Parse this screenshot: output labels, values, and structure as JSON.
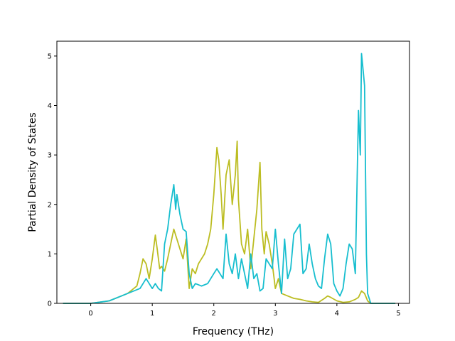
{
  "chart_data": {
    "type": "line",
    "title": "",
    "xlabel": "Frequency (THz)",
    "ylabel": "Partial Density of States",
    "xlim": [
      -0.55,
      5.18
    ],
    "ylim": [
      0,
      5.3
    ],
    "xticks": [
      0,
      1,
      2,
      3,
      4,
      5
    ],
    "yticks": [
      0,
      1,
      2,
      3,
      4,
      5
    ],
    "grid": false,
    "legend": "none",
    "series": [
      {
        "color": "#bcbd22",
        "x": [
          -0.45,
          0.0,
          0.3,
          0.5,
          0.6,
          0.7,
          0.75,
          0.8,
          0.85,
          0.9,
          0.95,
          1.0,
          1.05,
          1.08,
          1.12,
          1.15,
          1.2,
          1.25,
          1.3,
          1.35,
          1.4,
          1.45,
          1.5,
          1.55,
          1.6,
          1.65,
          1.7,
          1.75,
          1.8,
          1.85,
          1.9,
          1.95,
          2.0,
          2.05,
          2.08,
          2.12,
          2.15,
          2.2,
          2.25,
          2.3,
          2.35,
          2.38,
          2.4,
          2.45,
          2.5,
          2.55,
          2.6,
          2.65,
          2.7,
          2.75,
          2.78,
          2.82,
          2.85,
          2.9,
          2.95,
          3.0,
          3.05,
          3.1,
          3.2,
          3.3,
          3.4,
          3.5,
          3.6,
          3.7,
          3.8,
          3.85,
          3.9,
          4.0,
          4.1,
          4.2,
          4.3,
          4.35,
          4.4,
          4.45,
          4.5,
          4.55,
          4.6,
          4.95
        ],
        "values": [
          0,
          0,
          0.05,
          0.15,
          0.2,
          0.3,
          0.35,
          0.6,
          0.9,
          0.8,
          0.5,
          0.9,
          1.38,
          1.1,
          0.7,
          0.75,
          0.65,
          0.9,
          1.2,
          1.5,
          1.3,
          1.1,
          0.9,
          1.3,
          0.3,
          0.7,
          0.6,
          0.8,
          0.9,
          1.0,
          1.2,
          1.5,
          2.2,
          3.15,
          2.9,
          2.2,
          1.5,
          2.6,
          2.9,
          2.0,
          2.6,
          3.28,
          2.1,
          1.2,
          1.0,
          1.5,
          0.7,
          1.3,
          1.9,
          2.85,
          1.5,
          1.0,
          1.45,
          1.2,
          0.8,
          0.3,
          0.5,
          0.2,
          0.15,
          0.1,
          0.08,
          0.05,
          0.03,
          0.02,
          0.1,
          0.15,
          0.12,
          0.05,
          0.02,
          0.03,
          0.08,
          0.12,
          0.25,
          0.2,
          0.05,
          0,
          0,
          0
        ]
      },
      {
        "color": "#17becf",
        "x": [
          -0.45,
          0.0,
          0.3,
          0.5,
          0.6,
          0.7,
          0.8,
          0.85,
          0.9,
          1.0,
          1.05,
          1.1,
          1.15,
          1.2,
          1.25,
          1.3,
          1.35,
          1.38,
          1.4,
          1.45,
          1.5,
          1.55,
          1.6,
          1.65,
          1.7,
          1.8,
          1.9,
          2.0,
          2.05,
          2.1,
          2.15,
          2.2,
          2.25,
          2.3,
          2.35,
          2.4,
          2.45,
          2.5,
          2.55,
          2.6,
          2.65,
          2.7,
          2.75,
          2.8,
          2.85,
          2.9,
          2.95,
          3.0,
          3.05,
          3.1,
          3.15,
          3.2,
          3.25,
          3.3,
          3.35,
          3.4,
          3.45,
          3.5,
          3.55,
          3.6,
          3.65,
          3.7,
          3.75,
          3.8,
          3.85,
          3.9,
          3.95,
          4.0,
          4.05,
          4.1,
          4.15,
          4.2,
          4.25,
          4.3,
          4.35,
          4.38,
          4.4,
          4.42,
          4.45,
          4.48,
          4.5,
          4.55,
          4.6,
          4.95
        ],
        "values": [
          0,
          0,
          0.05,
          0.15,
          0.2,
          0.25,
          0.3,
          0.4,
          0.5,
          0.3,
          0.4,
          0.3,
          0.25,
          1.2,
          1.5,
          2.0,
          2.4,
          1.9,
          2.2,
          1.8,
          1.5,
          1.45,
          0.6,
          0.3,
          0.4,
          0.35,
          0.4,
          0.6,
          0.7,
          0.6,
          0.5,
          1.4,
          0.8,
          0.6,
          1.0,
          0.5,
          0.9,
          0.6,
          0.3,
          1.0,
          0.5,
          0.6,
          0.25,
          0.3,
          0.9,
          0.8,
          0.7,
          1.5,
          0.8,
          0.2,
          1.3,
          0.5,
          0.7,
          1.4,
          1.5,
          1.6,
          0.6,
          0.7,
          1.2,
          0.8,
          0.5,
          0.35,
          0.3,
          0.9,
          1.4,
          1.2,
          0.4,
          0.25,
          0.15,
          0.3,
          0.8,
          1.2,
          1.1,
          0.6,
          3.9,
          3.0,
          5.05,
          4.8,
          4.4,
          1.0,
          0.2,
          0,
          0,
          0
        ]
      }
    ]
  }
}
